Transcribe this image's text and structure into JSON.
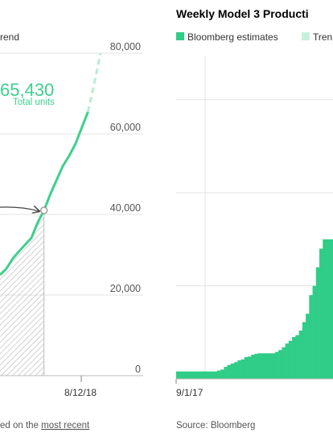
{
  "chart_data": [
    {
      "type": "line",
      "title": "",
      "legend_fragment": "rend",
      "headline_value": "65,430",
      "headline_label": "Total units",
      "x_tick_labels": [
        "8/12/18"
      ],
      "y_tick_labels": [
        "0",
        "20,000",
        "40,000",
        "60,000",
        "80,000"
      ],
      "ylim": [
        0,
        80000
      ],
      "footnote_prefix": "ed on the ",
      "footnote_link": "most recent",
      "series": [
        {
          "points": [
            [
              0,
              25000
            ],
            [
              1,
              26500
            ],
            [
              2,
              29000
            ],
            [
              3,
              30800
            ],
            [
              4,
              32500
            ],
            [
              5,
              34200
            ],
            [
              6,
              38000
            ],
            [
              7,
              41000
            ],
            [
              8,
              45000
            ],
            [
              9,
              48500
            ],
            [
              10,
              52000
            ],
            [
              11,
              54500
            ],
            [
              12,
              57500
            ],
            [
              13,
              61500
            ],
            [
              14,
              65430
            ]
          ]
        },
        {
          "style": "dashed",
          "points": [
            [
              14,
              65430
            ],
            [
              15,
              72500
            ],
            [
              16,
              80000
            ]
          ]
        }
      ],
      "marker_point": [
        7,
        41000
      ],
      "shaded_region_end_x": 7,
      "colors": {
        "line": "#3fcf8e",
        "dashed": "#b9ecd2",
        "hatch": "#bdbdbd",
        "grid": "#e3e3e3",
        "arrow": "#444444"
      }
    },
    {
      "type": "bar",
      "title": "Weekly Model 3 Producti",
      "legend": [
        "Bloomberg estimates",
        "Tren"
      ],
      "x_tick_labels": [
        "9/1/17"
      ],
      "source": "Source: Bloomberg",
      "values": [
        80,
        80,
        80,
        80,
        80,
        80,
        80,
        80,
        80,
        80,
        80,
        80,
        90,
        100,
        130,
        150,
        165,
        180,
        200,
        210,
        235,
        240,
        260,
        270,
        275,
        275,
        275,
        275,
        275,
        290,
        310,
        340,
        380,
        410,
        450,
        470,
        520,
        610,
        700,
        900,
        1000,
        1200,
        1400,
        1500,
        1500,
        1500
      ],
      "ylim": [
        0,
        3500
      ],
      "colors": {
        "bar": "#2fcd87",
        "trend": "#c7f0dc",
        "grid": "#e3e3e3"
      }
    }
  ]
}
